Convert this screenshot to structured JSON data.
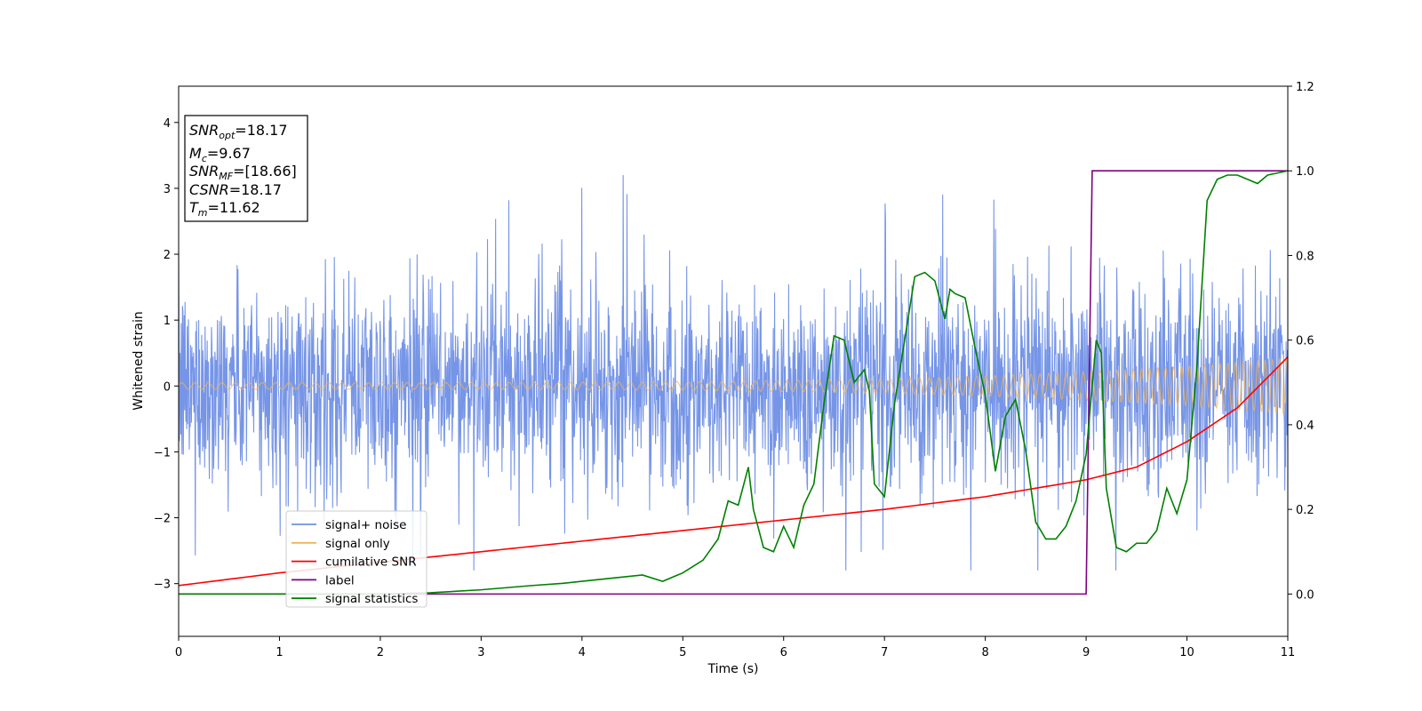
{
  "chart_data": {
    "type": "line",
    "title": "",
    "xlabel": "Time (s)",
    "ylabel": "Whitened strain",
    "xlim": [
      0,
      11
    ],
    "ylim_left": [
      -3.8,
      4.55
    ],
    "ylim_right": [
      -0.1,
      1.2
    ],
    "x_ticks": [
      0,
      1,
      2,
      3,
      4,
      5,
      6,
      7,
      8,
      9,
      10,
      11
    ],
    "y_ticks_left": [
      -3,
      -2,
      -1,
      0,
      1,
      2,
      3,
      4
    ],
    "y_ticks_left_labels": [
      "−3",
      "−2",
      "−1",
      "0",
      "1",
      "2",
      "3",
      "4"
    ],
    "y_ticks_right": [
      0.0,
      0.2,
      0.4,
      0.6,
      0.8,
      1.0,
      1.2
    ],
    "y_ticks_right_labels": [
      "0.0",
      "0.2",
      "0.4",
      "0.6",
      "0.8",
      "1.0",
      "1.2"
    ],
    "grid": false,
    "legend_position": "lower-left",
    "annotation": {
      "lines": [
        {
          "base": "SNR",
          "sub": "opt",
          "text": "=18.17"
        },
        {
          "base": "M",
          "sub": "c",
          "text": "=9.67"
        },
        {
          "base": "SNR",
          "sub": "MF",
          "text": "=[18.66]"
        },
        {
          "base": "CSNR",
          "sub": "",
          "text": "=18.17"
        },
        {
          "base": "T",
          "sub": "m",
          "text": "=11.62"
        }
      ]
    },
    "series": [
      {
        "name": "signal+ noise",
        "axis": "left",
        "color": "#6f8fe6",
        "kind": "noise",
        "std": 0.95,
        "envelope": [
          -2.8,
          3.42
        ]
      },
      {
        "name": "signal only",
        "axis": "left",
        "color": "#f1b45a",
        "kind": "chirp",
        "amplitude_start": 0.05,
        "amplitude_end": 0.42,
        "cycles_per_second_start": 7.5,
        "cycles_per_second_end": 14
      },
      {
        "name": "cumilative SNR",
        "axis": "right",
        "color": "#ff0000",
        "x": [
          0,
          1,
          2,
          3,
          4,
          5,
          6,
          7,
          8,
          9,
          9.5,
          10,
          10.5,
          11
        ],
        "y": [
          0.02,
          0.05,
          0.075,
          0.1,
          0.125,
          0.15,
          0.175,
          0.2,
          0.23,
          0.27,
          0.3,
          0.36,
          0.44,
          0.56
        ]
      },
      {
        "name": "label",
        "axis": "right",
        "color": "#800080",
        "x": [
          0,
          9,
          9.06,
          11
        ],
        "y": [
          0,
          0,
          1,
          1
        ]
      },
      {
        "name": "signal statistics",
        "axis": "right",
        "color": "#008000",
        "x": [
          0,
          1,
          2,
          2.5,
          3,
          3.5,
          3.8,
          4,
          4.2,
          4.4,
          4.6,
          4.8,
          5,
          5.2,
          5.35,
          5.45,
          5.55,
          5.65,
          5.7,
          5.8,
          5.9,
          6.0,
          6.1,
          6.2,
          6.3,
          6.4,
          6.5,
          6.6,
          6.7,
          6.8,
          6.85,
          6.9,
          7.0,
          7.1,
          7.2,
          7.3,
          7.4,
          7.5,
          7.6,
          7.65,
          7.7,
          7.8,
          7.9,
          8.0,
          8.1,
          8.2,
          8.3,
          8.4,
          8.5,
          8.6,
          8.7,
          8.8,
          8.9,
          9.0,
          9.1,
          9.15,
          9.2,
          9.3,
          9.4,
          9.5,
          9.6,
          9.7,
          9.8,
          9.9,
          10.0,
          10.1,
          10.2,
          10.3,
          10.4,
          10.5,
          10.6,
          10.7,
          10.8,
          11.0
        ],
        "y": [
          0,
          0,
          0,
          0.003,
          0.01,
          0.02,
          0.025,
          0.03,
          0.035,
          0.04,
          0.045,
          0.03,
          0.05,
          0.08,
          0.13,
          0.22,
          0.21,
          0.3,
          0.2,
          0.11,
          0.1,
          0.16,
          0.11,
          0.21,
          0.26,
          0.45,
          0.61,
          0.6,
          0.5,
          0.53,
          0.48,
          0.26,
          0.23,
          0.45,
          0.6,
          0.75,
          0.76,
          0.74,
          0.65,
          0.72,
          0.71,
          0.7,
          0.58,
          0.47,
          0.29,
          0.42,
          0.46,
          0.34,
          0.17,
          0.13,
          0.13,
          0.16,
          0.22,
          0.33,
          0.6,
          0.57,
          0.25,
          0.11,
          0.1,
          0.12,
          0.12,
          0.15,
          0.25,
          0.19,
          0.27,
          0.54,
          0.93,
          0.98,
          0.99,
          0.99,
          0.98,
          0.97,
          0.99,
          1.0
        ]
      }
    ]
  }
}
